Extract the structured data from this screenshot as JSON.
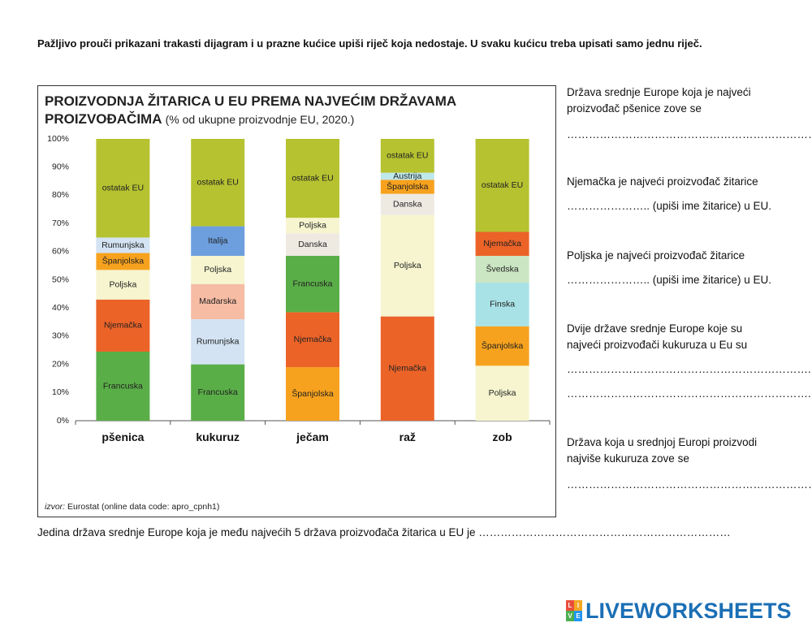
{
  "instruction": "Pažljivo prouči prikazani trakasti dijagram i u prazne kućice upiši riječ koja nedostaje. U svaku kućicu treba upisati samo jednu riječ.",
  "chart_data": {
    "type": "stacked-bar",
    "title": "PROIZVODNJA ŽITARICA U EU PREMA NAJVEĆIM DRŽAVAMA PROIZVOĐAČIMA",
    "subtitle": "(% od ukupne proizvodnje EU, 2020.)",
    "ylim": [
      0,
      100
    ],
    "yticks": [
      "0%",
      "10%",
      "20%",
      "30%",
      "40%",
      "50%",
      "60%",
      "70%",
      "80%",
      "90%",
      "100%"
    ],
    "categories": [
      "pšenica",
      "kukuruz",
      "ječam",
      "raž",
      "zob"
    ],
    "stacks": [
      [
        {
          "label": "Francuska",
          "value": 24.5,
          "color": "#5aae48"
        },
        {
          "label": "Njemačka",
          "value": 18.5,
          "color": "#ec6328"
        },
        {
          "label": "Poljska",
          "value": 10.5,
          "color": "#f6f5cf"
        },
        {
          "label": "Španjolska",
          "value": 6,
          "color": "#f7a21e"
        },
        {
          "label": "Rumunjska",
          "value": 5.5,
          "color": "#d3e3f3"
        },
        {
          "label": "ostatak EU",
          "value": 35,
          "color": "#b6c230"
        }
      ],
      [
        {
          "label": "Francuska",
          "value": 20,
          "color": "#5aae48"
        },
        {
          "label": "Rumunjska",
          "value": 16,
          "color": "#d3e3f3"
        },
        {
          "label": "Mađarska",
          "value": 12.5,
          "color": "#f6bca4"
        },
        {
          "label": "Poljska",
          "value": 10,
          "color": "#f6f5cf"
        },
        {
          "label": "Italija",
          "value": 10.5,
          "color": "#6d9fde"
        },
        {
          "label": "ostatak EU",
          "value": 31,
          "color": "#b6c230"
        }
      ],
      [
        {
          "label": "Španjolska",
          "value": 19,
          "color": "#f7a21e"
        },
        {
          "label": "Njemačka",
          "value": 19.5,
          "color": "#ec6328"
        },
        {
          "label": "Francuska",
          "value": 20,
          "color": "#5aae48"
        },
        {
          "label": "Danska",
          "value": 8,
          "color": "#eeeae2"
        },
        {
          "label": "Poljska",
          "value": 5.5,
          "color": "#f6f5cf"
        },
        {
          "label": "ostatak EU",
          "value": 28,
          "color": "#b6c230"
        }
      ],
      [
        {
          "label": "Njemačka",
          "value": 37,
          "color": "#ec6328"
        },
        {
          "label": "Poljska",
          "value": 36,
          "color": "#f6f5cf"
        },
        {
          "label": "Danska",
          "value": 7.5,
          "color": "#eeeae2"
        },
        {
          "label": "Španjolska",
          "value": 5,
          "color": "#f7a21e"
        },
        {
          "label": "Austrija",
          "value": 2.5,
          "color": "#bfe8ec"
        },
        {
          "label": "ostatak EU",
          "value": 12,
          "color": "#b6c230"
        }
      ],
      [
        {
          "label": "Poljska",
          "value": 19.5,
          "color": "#f6f5cf"
        },
        {
          "label": "Španjolska",
          "value": 14,
          "color": "#f7a21e"
        },
        {
          "label": "Finska",
          "value": 15.5,
          "color": "#a8e2e6"
        },
        {
          "label": "Švedska",
          "value": 9.5,
          "color": "#cbe6c2"
        },
        {
          "label": "Njemačka",
          "value": 8.5,
          "color": "#ec6328"
        },
        {
          "label": "ostatak EU",
          "value": 33,
          "color": "#b6c230"
        }
      ]
    ]
  },
  "source_label": "izvor:",
  "source_text": "Eurostat (online data code: apro_cpnh1)",
  "questions": [
    {
      "text": "Država srednje Europe koja je najveći proizvođač pšenice zove se",
      "blank": "……………………………………………………………"
    },
    {
      "text": "Njemačka je najveći proizvođač žitarice",
      "blank": "………………….. (upiši ime žitarice) u EU."
    },
    {
      "text": "Poljska je najveći proizvođač žitarice",
      "blank": "………………….. (upiši ime žitarice) u EU."
    },
    {
      "text": "Dvije države srednje Europe koje su najveći proizvođači kukuruza u Eu su",
      "blank": "…………………………………………………………. i",
      "blank2": "………………………………………………………….."
    },
    {
      "text": "Država koja u srednjoj Europi proizvodi najviše kukuruza zove se",
      "blank": "……………………………………………………………."
    }
  ],
  "bottom_question": "Jedina država srednje Europe koja je među najvećih 5 država proizvođača žitarica u EU je ……………………………………………………………",
  "logo": {
    "text": "LIVEWORKSHEETS",
    "letters": [
      "L",
      "I",
      "V",
      "E"
    ],
    "color": "#1b6fb5"
  }
}
